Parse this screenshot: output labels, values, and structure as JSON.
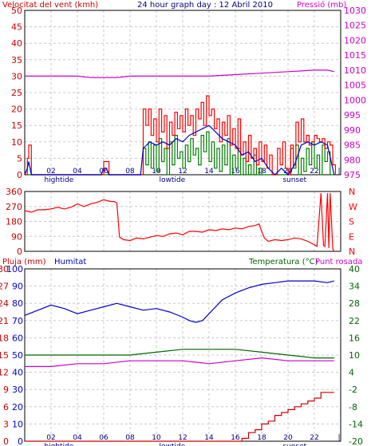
{
  "colors": {
    "frame": "#000000",
    "grid": "#c8c8c8",
    "wind_title": "#cc0000",
    "pressure": "#cc00cc",
    "gust": "#ff0000",
    "wind_avg": "#0000cc",
    "wind_green": "#008000",
    "direction": "#ff0000",
    "humidity": "#0000cc",
    "temperature": "#006600",
    "dewpoint": "#cc00cc",
    "rain": "#cc0000",
    "label": "#000080"
  },
  "chart_data": [
    {
      "type": "line",
      "title": "24 hour graph day : 12 Abril 2010",
      "left_axis_label": "Velocitat del vent (kmh)",
      "right_axis_label": "Pressió (mb)",
      "left_ticks": [
        "0",
        "5",
        "10",
        "15",
        "20",
        "25",
        "30",
        "35",
        "40",
        "45",
        "50"
      ],
      "right_ticks": [
        "975",
        "980",
        "985",
        "990",
        "995",
        "1000",
        "1005",
        "1010",
        "1015",
        "1020",
        "1025",
        "1030"
      ],
      "ylim_left": [
        0,
        50
      ],
      "ylim_right": [
        975,
        1030
      ],
      "x_ticks": [
        "02",
        "04",
        "06",
        "08",
        "10",
        "12",
        "14",
        "16",
        "18",
        "20",
        "22"
      ],
      "x_markers": [
        "hightide",
        "lowtide",
        "sunset"
      ],
      "xlim": [
        0,
        24
      ],
      "series": [
        {
          "color_key": "pressure",
          "x": [
            0,
            2,
            4,
            5,
            6,
            7,
            8,
            10,
            12,
            14,
            16,
            18,
            20,
            22,
            23,
            23.5
          ],
          "values": [
            1008,
            1008,
            1008,
            1007.5,
            1007.5,
            1007.5,
            1008,
            1008,
            1008,
            1008,
            1008.5,
            1009,
            1009.5,
            1010,
            1010,
            1009.5
          ]
        },
        {
          "color_key": "gust",
          "x": [
            0,
            0.2,
            0.3,
            0.5,
            5.8,
            6,
            6.2,
            6.4,
            8.8,
            9,
            9.2,
            9.4,
            9.6,
            9.8,
            10,
            10.2,
            10.4,
            10.6,
            10.8,
            11,
            11.2,
            11.4,
            11.6,
            11.8,
            12,
            12.2,
            12.4,
            12.6,
            12.8,
            13,
            13.2,
            13.4,
            13.6,
            13.8,
            14,
            14.2,
            14.4,
            14.6,
            14.8,
            15,
            15.2,
            15.4,
            15.6,
            15.8,
            16,
            16.2,
            16.4,
            16.6,
            16.8,
            17,
            17.2,
            17.4,
            17.6,
            17.8,
            18,
            18.2,
            18.4,
            18.6,
            18.8,
            19,
            19.2,
            19.4,
            19.6,
            19.8,
            20,
            20.2,
            20.4,
            20.6,
            20.8,
            21,
            21.2,
            21.4,
            21.6,
            21.8,
            22,
            22.2,
            22.4,
            22.6,
            22.8,
            23,
            23.2,
            23.4,
            23.6
          ],
          "values": [
            0,
            5,
            9,
            0,
            0,
            4,
            4,
            0,
            0,
            20,
            15,
            20,
            12,
            17,
            10,
            20,
            13,
            18,
            8,
            16,
            12,
            19,
            14,
            18,
            13,
            20,
            15,
            18,
            12,
            20,
            17,
            22,
            15,
            24,
            18,
            20,
            14,
            17,
            10,
            16,
            12,
            18,
            9,
            14,
            8,
            17,
            6,
            10,
            4,
            12,
            5,
            8,
            3,
            10,
            4,
            9,
            2,
            6,
            0,
            0,
            8,
            3,
            10,
            2,
            0,
            9,
            3,
            16,
            10,
            17,
            10,
            12,
            9,
            10,
            12,
            11,
            10,
            11,
            8,
            10,
            9,
            3,
            0
          ]
        },
        {
          "color_key": "wind_avg",
          "x": [
            0,
            0.2,
            0.3,
            0.5,
            5.8,
            6,
            6.2,
            6.4,
            8.8,
            9,
            9.5,
            10,
            10.5,
            11,
            11.5,
            12,
            12.5,
            13,
            13.5,
            14,
            14.5,
            15,
            15.5,
            16,
            16.5,
            17,
            17.5,
            18,
            18.5,
            19,
            19.5,
            20,
            20.5,
            21,
            21.5,
            22,
            22.5,
            23,
            23.5
          ],
          "values": [
            0,
            2,
            4,
            0,
            0,
            2,
            2,
            0,
            0,
            8,
            10,
            9,
            10,
            9,
            11,
            10,
            12,
            13,
            14,
            15,
            13,
            11,
            10,
            9,
            6,
            7,
            4,
            5,
            2,
            0,
            2,
            0,
            3,
            9,
            10,
            9,
            10,
            9,
            0
          ]
        },
        {
          "color_key": "wind_green",
          "x": [
            0,
            8.8,
            9,
            9.2,
            9.4,
            9.6,
            9.8,
            10,
            10.2,
            10.4,
            10.6,
            10.8,
            11,
            11.2,
            11.4,
            11.6,
            11.8,
            12,
            12.2,
            12.4,
            12.6,
            12.8,
            13,
            13.2,
            13.4,
            13.6,
            13.8,
            14,
            14.2,
            14.4,
            14.6,
            14.8,
            15,
            15.2,
            15.4,
            15.6,
            15.8,
            16,
            16.2,
            16.4,
            16.6,
            16.8,
            17,
            17.2,
            17.4,
            17.6,
            17.8,
            18,
            18.2,
            19,
            20,
            20.2,
            20.4,
            20.6,
            20.8,
            21,
            21.2,
            21.4,
            21.6,
            21.8,
            22,
            22.2,
            22.4,
            22.6,
            22.8,
            23,
            23.2,
            23.5
          ],
          "values": [
            0,
            0,
            8,
            3,
            10,
            2,
            9,
            1,
            11,
            4,
            8,
            0,
            10,
            3,
            12,
            5,
            7,
            2,
            9,
            4,
            11,
            6,
            8,
            3,
            12,
            7,
            13,
            4,
            10,
            2,
            8,
            1,
            9,
            3,
            11,
            0,
            6,
            2,
            8,
            0,
            5,
            0,
            3,
            0,
            6,
            0,
            2,
            0,
            0,
            0,
            0,
            8,
            2,
            9,
            0,
            5,
            1,
            8,
            3,
            10,
            2,
            6,
            0,
            9,
            4,
            7,
            0,
            0
          ]
        }
      ]
    },
    {
      "type": "line",
      "left_ticks": [
        "0",
        "90",
        "180",
        "270",
        "360"
      ],
      "right_ticks": [
        "N",
        "E",
        "S",
        "W",
        "N"
      ],
      "ylim": [
        0,
        360
      ],
      "xlim": [
        0,
        24
      ],
      "series": [
        {
          "color_key": "direction",
          "x": [
            0,
            0.5,
            1,
            1.5,
            2,
            2.5,
            3,
            3.5,
            4,
            4.5,
            5,
            5.5,
            6,
            6.5,
            6.8,
            7,
            7.2,
            7.5,
            8,
            8.5,
            9,
            9.5,
            10,
            10.5,
            11,
            11.5,
            12,
            12.5,
            13,
            13.5,
            14,
            14.5,
            15,
            15.5,
            16,
            16.5,
            17,
            17.5,
            17.8,
            18,
            18.2,
            18.5,
            19,
            19.5,
            20,
            20.5,
            21,
            21.5,
            22,
            22.2,
            22.5,
            22.7,
            22.8,
            23,
            23.1,
            23.2,
            23.4,
            23.5
          ],
          "values": [
            245,
            235,
            250,
            250,
            255,
            265,
            255,
            265,
            285,
            270,
            285,
            295,
            310,
            300,
            300,
            290,
            85,
            70,
            65,
            80,
            75,
            85,
            95,
            90,
            105,
            110,
            100,
            120,
            120,
            115,
            130,
            125,
            135,
            130,
            140,
            135,
            150,
            155,
            165,
            120,
            80,
            60,
            70,
            65,
            70,
            80,
            75,
            60,
            40,
            30,
            350,
            35,
            30,
            350,
            20,
            350,
            15,
            0
          ]
        }
      ]
    },
    {
      "type": "line",
      "left_axis_label": "Pluja (mm)",
      "left_axis_label_2": "Humitat",
      "right_axis_label": "Temperatura (°C)",
      "right_axis_label_2": "Punt rosada",
      "rain_ticks": [
        "0",
        "3",
        "6",
        "9",
        "12",
        "15",
        "18",
        "21",
        "24",
        "27",
        "30"
      ],
      "humidity_ticks": [
        "0",
        "10",
        "20",
        "30",
        "40",
        "50",
        "60",
        "70",
        "80",
        "90",
        "100"
      ],
      "temp_ticks": [
        "-20",
        "-14",
        "-8",
        "-2",
        "4",
        "10",
        "16",
        "22",
        "28",
        "34",
        "40"
      ],
      "ylim_rain": [
        0,
        30
      ],
      "ylim_humidity": [
        0,
        100
      ],
      "ylim_temp": [
        -20,
        40
      ],
      "x_ticks": [
        "02",
        "04",
        "06",
        "08",
        "10",
        "12",
        "14",
        "16",
        "18",
        "20",
        "22"
      ],
      "x_markers": [
        "hightide",
        "lowtide",
        "sunset"
      ],
      "xlim": [
        0,
        24
      ],
      "series": [
        {
          "color_key": "humidity",
          "x": [
            0,
            1,
            2,
            3,
            4,
            5,
            6,
            7,
            8,
            9,
            10,
            11,
            12,
            12.5,
            13,
            13.5,
            14,
            15,
            16,
            17,
            18,
            19,
            20,
            21,
            22,
            23,
            23.5
          ],
          "values": [
            73,
            76,
            79,
            77,
            74,
            76,
            78,
            80,
            78,
            76,
            77,
            75,
            72,
            70,
            69,
            70,
            74,
            82,
            86,
            89,
            91,
            92,
            93,
            93,
            93,
            92,
            93
          ]
        },
        {
          "color_key": "temperature",
          "x": [
            0,
            2,
            4,
            6,
            8,
            10,
            12,
            14,
            16,
            18,
            20,
            22,
            23,
            23.5
          ],
          "values": [
            10,
            10,
            10,
            10,
            10,
            11,
            12,
            12,
            12,
            11,
            10,
            9,
            9,
            9
          ]
        },
        {
          "color_key": "dewpoint",
          "x": [
            0,
            2,
            4,
            6,
            8,
            10,
            12,
            14,
            16,
            18,
            20,
            22,
            23,
            23.5
          ],
          "values": [
            6,
            6,
            7,
            7,
            8,
            8,
            8,
            7,
            8,
            9,
            8,
            8,
            8,
            8
          ]
        },
        {
          "color_key": "rain",
          "x": [
            0,
            16,
            16.5,
            17,
            17.5,
            18,
            18.5,
            19,
            19.5,
            20,
            20.5,
            21,
            21.5,
            22,
            22.5,
            23,
            23.5
          ],
          "values": [
            0,
            0,
            0.5,
            1.5,
            2,
            3,
            3.5,
            4.5,
            5,
            5.5,
            6,
            6.5,
            7,
            7.5,
            8.5,
            8.5,
            8.5
          ]
        }
      ]
    }
  ]
}
